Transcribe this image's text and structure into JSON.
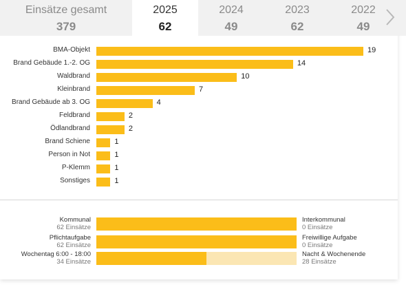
{
  "tabs": [
    {
      "label": "Einsätze gesamt",
      "count": "379"
    },
    {
      "label": "2025",
      "count": "62"
    },
    {
      "label": "2024",
      "count": "49"
    },
    {
      "label": "2023",
      "count": "62"
    },
    {
      "label": "2022",
      "count": "49"
    }
  ],
  "active_tab": "2025",
  "colors": {
    "bar": "#fbbd19",
    "bar_light": "#fbe6b3",
    "tab_bg": "#f1f1f1"
  },
  "chart_data": {
    "type": "bar",
    "orientation": "horizontal",
    "categories": [
      "BMA-Objekt",
      "Brand Gebäude 1.-2. OG",
      "Waldbrand",
      "Kleinbrand",
      "Brand Gebäude ab 3. OG",
      "Feldbrand",
      "Ödlandbrand",
      "Brand Schiene",
      "Person in Not",
      "P-Klemm",
      "Sonstiges"
    ],
    "values": [
      19,
      14,
      10,
      7,
      4,
      2,
      2,
      1,
      1,
      1,
      1
    ],
    "value_labels": [
      "19",
      "14",
      "10",
      "7",
      "4",
      "2",
      "2",
      "1",
      "1",
      "1",
      "1"
    ],
    "xlim": [
      0,
      19
    ],
    "grid": false
  },
  "splits": [
    {
      "left_name": "Kommunal",
      "left_sub": "62 Einsätze",
      "right_name": "Interkommunal",
      "right_sub": "0 Einsätze",
      "left_value": 62,
      "right_value": 0
    },
    {
      "left_name": "Pflichtaufgabe",
      "left_sub": "62 Einsätze",
      "right_name": "Freiwillige Aufgabe",
      "right_sub": "0 Einsätze",
      "left_value": 62,
      "right_value": 0
    },
    {
      "left_name": "Wochentag 6:00 - 18:00",
      "left_sub": "34 Einsätze",
      "right_name": "Nacht & Wochenende",
      "right_sub": "28 Einsätze",
      "left_value": 34,
      "right_value": 28
    }
  ],
  "icons": {
    "next": "chevron-right-icon"
  }
}
